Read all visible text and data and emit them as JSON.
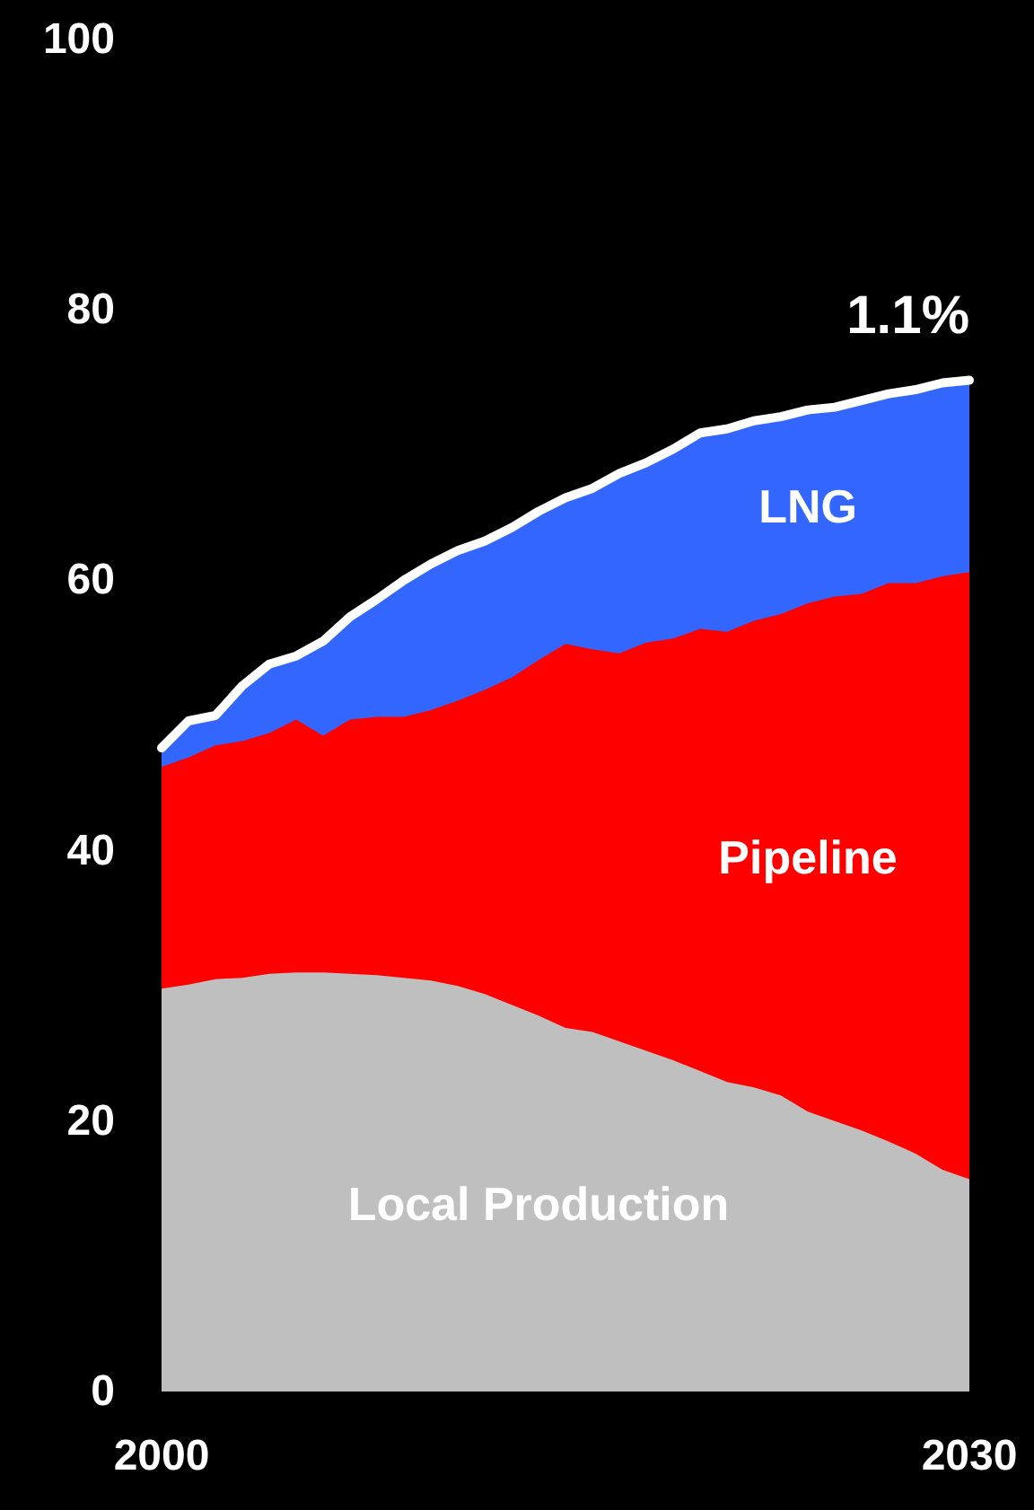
{
  "chart_data": {
    "type": "area",
    "stacked": true,
    "x": [
      2000,
      2001,
      2002,
      2003,
      2004,
      2005,
      2006,
      2007,
      2008,
      2009,
      2010,
      2011,
      2012,
      2013,
      2014,
      2015,
      2016,
      2017,
      2018,
      2019,
      2020,
      2021,
      2022,
      2023,
      2024,
      2025,
      2026,
      2027,
      2028,
      2029,
      2030
    ],
    "xlim": [
      2000,
      2030
    ],
    "xticks": [
      2000,
      2030
    ],
    "ylim": [
      0,
      100
    ],
    "yticks": [
      0,
      20,
      40,
      60,
      80,
      100
    ],
    "grid": false,
    "legend": false,
    "annotations": [
      "1.1%"
    ],
    "series": [
      {
        "name": "Local Production",
        "color": "#bfbfbf",
        "values": [
          29.8,
          30.1,
          30.5,
          30.6,
          30.9,
          31.0,
          31.0,
          30.9,
          30.8,
          30.6,
          30.4,
          30.0,
          29.4,
          28.6,
          27.8,
          26.9,
          26.6,
          25.9,
          25.2,
          24.5,
          23.7,
          22.9,
          22.5,
          21.9,
          20.7,
          20.0,
          19.3,
          18.5,
          17.6,
          16.4,
          15.7
        ]
      },
      {
        "name": "Pipeline",
        "color": "#ff0000",
        "values": [
          16.4,
          16.8,
          17.3,
          17.5,
          17.8,
          18.7,
          17.5,
          18.8,
          19.1,
          19.3,
          20.0,
          21.1,
          22.5,
          24.2,
          26.3,
          28.4,
          28.3,
          28.7,
          30.2,
          31.2,
          32.7,
          33.3,
          34.5,
          35.6,
          37.6,
          38.8,
          39.7,
          41.3,
          42.2,
          43.9,
          44.9
        ]
      },
      {
        "name": "LNG",
        "color": "#3366ff",
        "values": [
          1.4,
          2.7,
          2.2,
          4.1,
          5.1,
          4.7,
          7.0,
          7.6,
          8.7,
          10.1,
          10.8,
          11.1,
          11.0,
          11.1,
          11.0,
          10.8,
          11.9,
          13.3,
          13.3,
          14.0,
          14.5,
          15.0,
          14.8,
          14.6,
          14.3,
          14.0,
          14.3,
          14.0,
          14.3,
          14.3,
          14.2
        ]
      }
    ]
  }
}
